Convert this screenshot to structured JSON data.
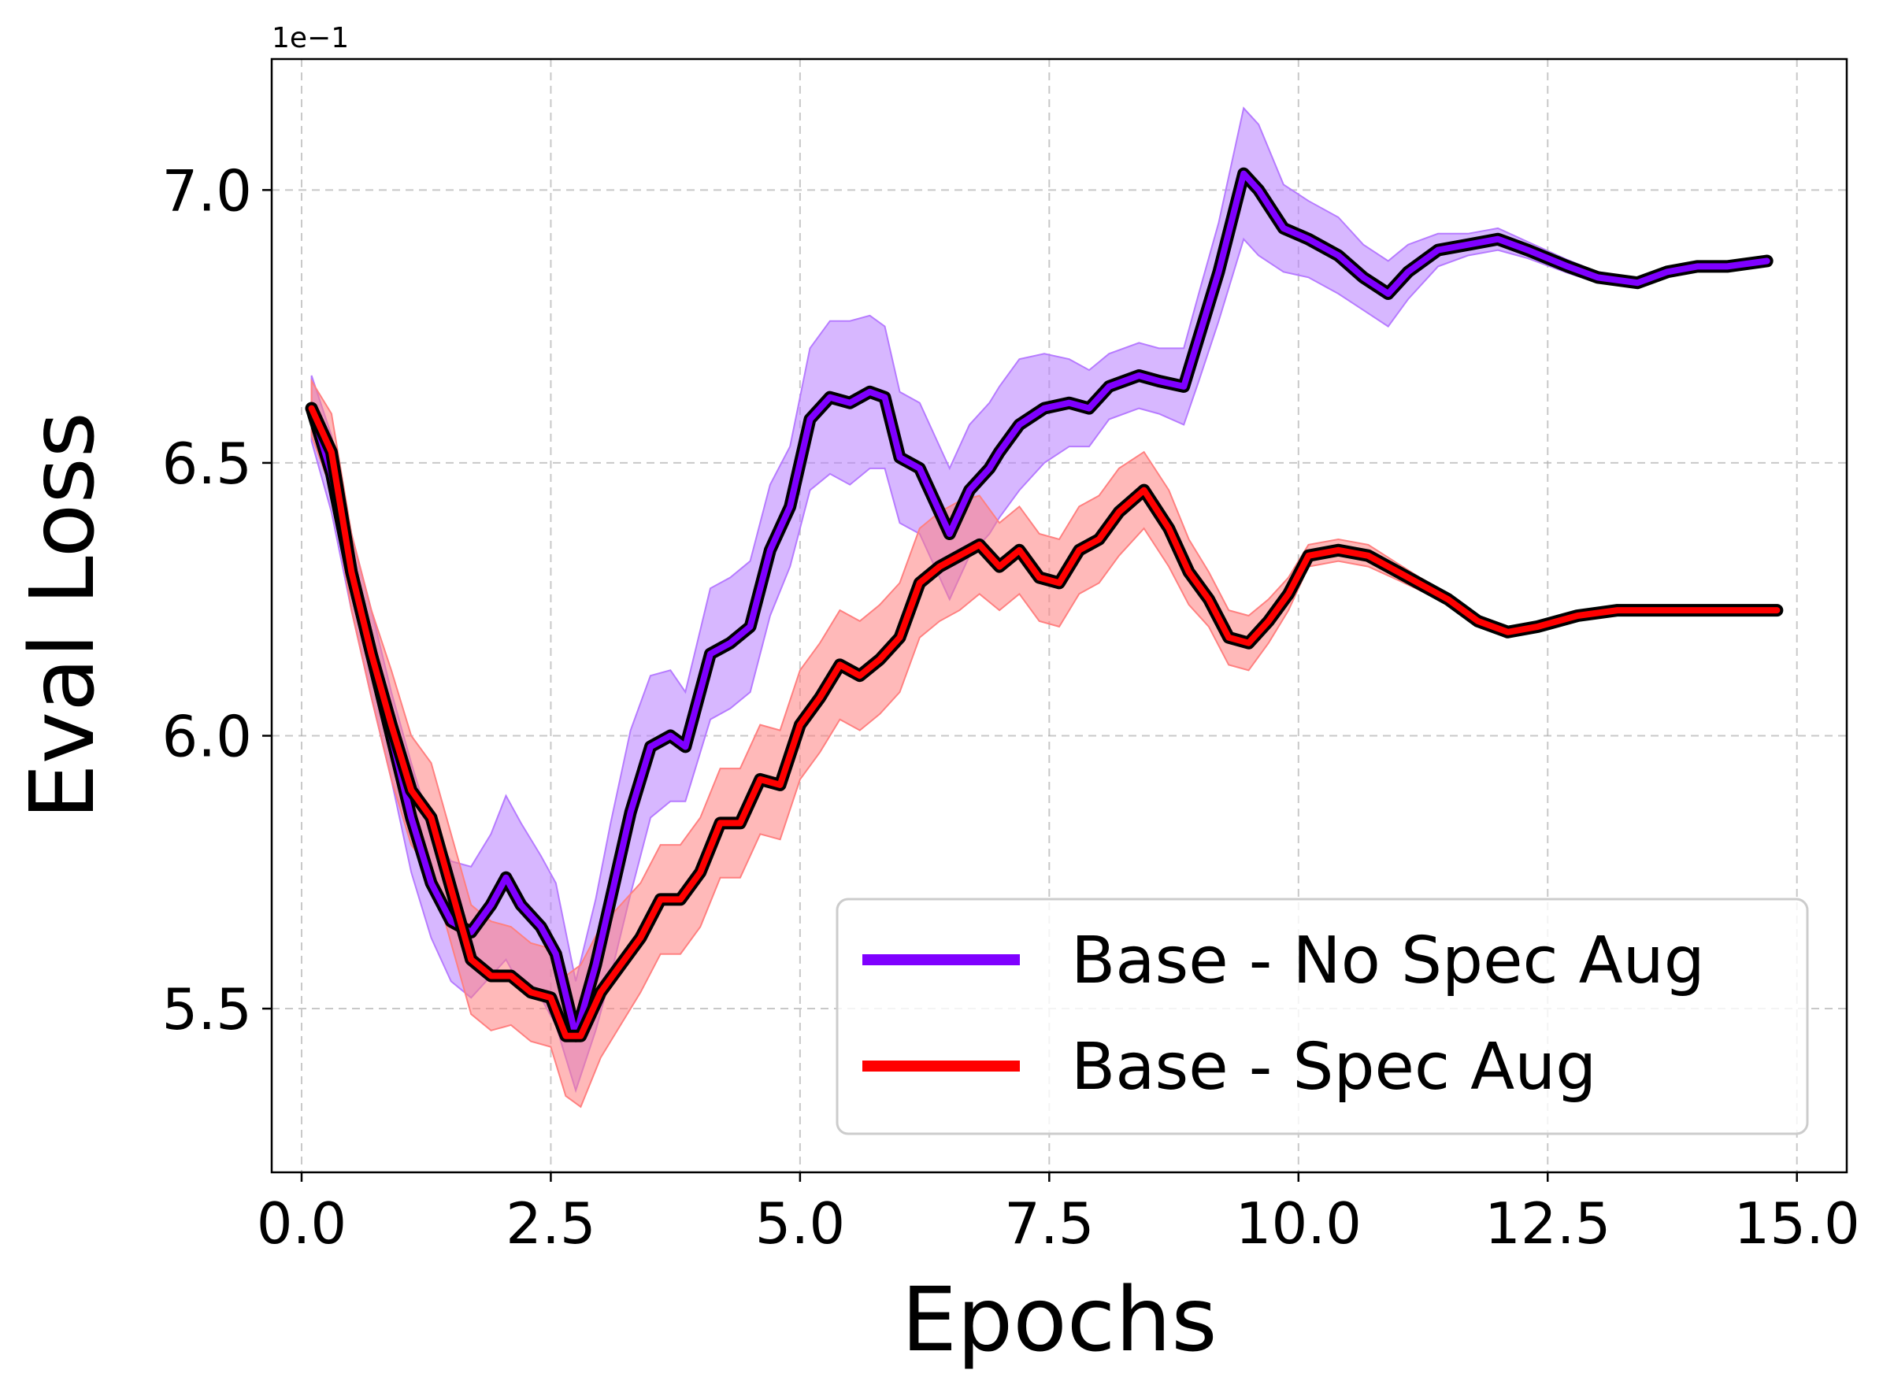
{
  "chart_data": {
    "type": "line",
    "xlabel": "Epochs",
    "ylabel": "Eval Loss",
    "offset_text": "1e−1",
    "xlim": [
      -0.3,
      15.5
    ],
    "ylim": [
      5.2,
      7.24
    ],
    "xticks": [
      0.0,
      2.5,
      5.0,
      7.5,
      10.0,
      12.5,
      15.0
    ],
    "xtick_labels": [
      "0.0",
      "2.5",
      "5.0",
      "7.5",
      "10.0",
      "12.5",
      "15.0"
    ],
    "yticks": [
      5.5,
      6.0,
      6.5,
      7.0
    ],
    "ytick_labels": [
      "5.5",
      "6.0",
      "6.5",
      "7.0"
    ],
    "grid": true,
    "legend_position": "lower right",
    "series": [
      {
        "name": "Base - No Spec Aug",
        "color": "#7f00ff",
        "band_color": "#b67bff",
        "x": [
          0.1,
          0.3,
          0.5,
          0.7,
          0.9,
          1.1,
          1.3,
          1.5,
          1.7,
          1.9,
          2.05,
          2.2,
          2.4,
          2.55,
          2.75,
          2.95,
          3.1,
          3.3,
          3.5,
          3.7,
          3.85,
          4.1,
          4.3,
          4.5,
          4.7,
          4.9,
          5.1,
          5.3,
          5.5,
          5.7,
          5.85,
          6.0,
          6.2,
          6.5,
          6.7,
          6.9,
          7.0,
          7.2,
          7.45,
          7.7,
          7.9,
          8.1,
          8.4,
          8.6,
          8.85,
          9.0,
          9.2,
          9.45,
          9.6,
          9.85,
          10.1,
          10.4,
          10.65,
          10.9,
          11.1,
          11.4,
          11.7,
          12.0,
          12.3,
          12.7,
          13.0,
          13.4,
          13.7,
          14.0,
          14.3,
          14.7
        ],
        "values": [
          6.6,
          6.48,
          6.3,
          6.15,
          6.0,
          5.85,
          5.73,
          5.66,
          5.64,
          5.69,
          5.74,
          5.69,
          5.65,
          5.6,
          5.45,
          5.58,
          5.7,
          5.86,
          5.98,
          6.0,
          5.98,
          6.15,
          6.17,
          6.2,
          6.34,
          6.42,
          6.58,
          6.62,
          6.61,
          6.63,
          6.62,
          6.51,
          6.49,
          6.37,
          6.45,
          6.49,
          6.52,
          6.57,
          6.6,
          6.61,
          6.6,
          6.64,
          6.66,
          6.65,
          6.64,
          6.73,
          6.85,
          7.03,
          7.0,
          6.93,
          6.91,
          6.88,
          6.84,
          6.81,
          6.85,
          6.89,
          6.9,
          6.91,
          6.89,
          6.86,
          6.84,
          6.83,
          6.85,
          6.86,
          6.86,
          6.87
        ],
        "band": [
          0.06,
          0.07,
          0.07,
          0.08,
          0.08,
          0.1,
          0.1,
          0.11,
          0.12,
          0.13,
          0.15,
          0.15,
          0.13,
          0.13,
          0.1,
          0.12,
          0.14,
          0.15,
          0.13,
          0.12,
          0.1,
          0.12,
          0.12,
          0.12,
          0.12,
          0.11,
          0.13,
          0.14,
          0.15,
          0.14,
          0.13,
          0.12,
          0.12,
          0.12,
          0.12,
          0.12,
          0.12,
          0.12,
          0.1,
          0.08,
          0.07,
          0.06,
          0.06,
          0.06,
          0.07,
          0.08,
          0.09,
          0.12,
          0.12,
          0.08,
          0.07,
          0.07,
          0.06,
          0.06,
          0.05,
          0.03,
          0.02,
          0.02,
          0.015,
          0.012,
          0.01,
          0.008,
          0.006,
          0.005,
          0.005,
          0.005
        ]
      },
      {
        "name": "Base - Spec Aug",
        "color": "#ff0000",
        "band_color": "#ff8080",
        "x": [
          0.1,
          0.3,
          0.5,
          0.7,
          0.9,
          1.1,
          1.3,
          1.5,
          1.7,
          1.9,
          2.1,
          2.3,
          2.5,
          2.65,
          2.8,
          3.0,
          3.2,
          3.4,
          3.6,
          3.8,
          4.0,
          4.2,
          4.4,
          4.6,
          4.8,
          5.0,
          5.2,
          5.4,
          5.6,
          5.8,
          6.0,
          6.2,
          6.4,
          6.6,
          6.8,
          7.0,
          7.2,
          7.4,
          7.6,
          7.8,
          8.0,
          8.2,
          8.45,
          8.7,
          8.9,
          9.1,
          9.3,
          9.5,
          9.7,
          9.9,
          10.1,
          10.4,
          10.7,
          11.0,
          11.2,
          11.5,
          11.8,
          12.1,
          12.4,
          12.8,
          13.2,
          13.6,
          14.0,
          14.4,
          14.8
        ],
        "values": [
          6.6,
          6.52,
          6.3,
          6.15,
          6.02,
          5.9,
          5.85,
          5.72,
          5.59,
          5.56,
          5.56,
          5.53,
          5.52,
          5.45,
          5.45,
          5.53,
          5.58,
          5.63,
          5.7,
          5.7,
          5.75,
          5.84,
          5.84,
          5.92,
          5.91,
          6.02,
          6.07,
          6.13,
          6.11,
          6.14,
          6.18,
          6.28,
          6.31,
          6.33,
          6.35,
          6.31,
          6.34,
          6.29,
          6.28,
          6.34,
          6.36,
          6.41,
          6.45,
          6.38,
          6.3,
          6.25,
          6.18,
          6.17,
          6.21,
          6.26,
          6.33,
          6.34,
          6.33,
          6.3,
          6.28,
          6.25,
          6.21,
          6.19,
          6.2,
          6.22,
          6.23,
          6.23,
          6.23,
          6.23,
          6.23
        ],
        "band": [
          0.05,
          0.07,
          0.07,
          0.08,
          0.1,
          0.1,
          0.1,
          0.1,
          0.1,
          0.1,
          0.09,
          0.09,
          0.09,
          0.11,
          0.13,
          0.12,
          0.11,
          0.1,
          0.1,
          0.1,
          0.1,
          0.1,
          0.1,
          0.1,
          0.1,
          0.1,
          0.1,
          0.1,
          0.1,
          0.1,
          0.1,
          0.1,
          0.1,
          0.1,
          0.09,
          0.08,
          0.08,
          0.08,
          0.08,
          0.08,
          0.08,
          0.08,
          0.07,
          0.07,
          0.06,
          0.05,
          0.05,
          0.05,
          0.04,
          0.03,
          0.02,
          0.02,
          0.02,
          0.015,
          0.012,
          0.01,
          0.008,
          0.006,
          0.005,
          0.005,
          0.004,
          0.003,
          0.003,
          0.003,
          0.003
        ]
      }
    ]
  }
}
